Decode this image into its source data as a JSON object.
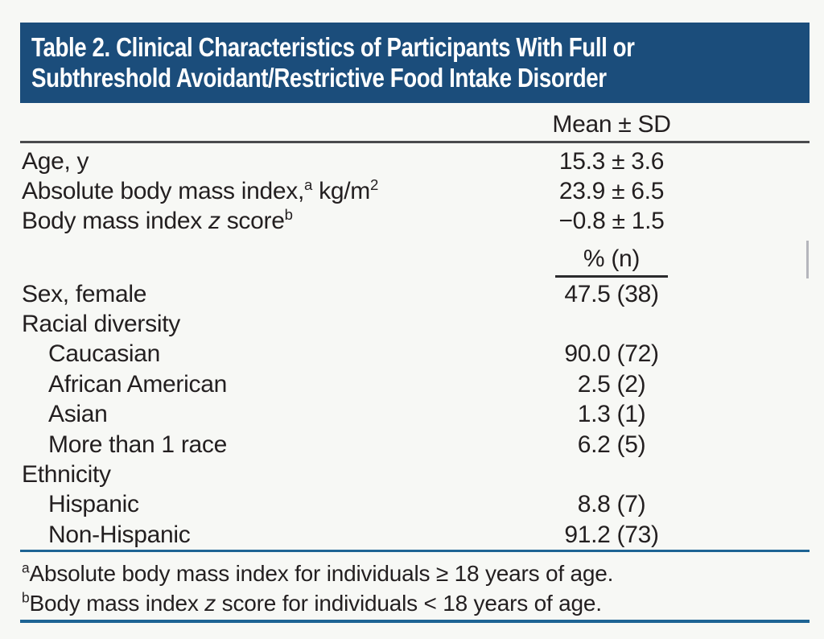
{
  "header": {
    "title_lines": [
      "Table 2. Clinical Characteristics of Participants With Full or",
      "Subthreshold Avoidant/Restrictive Food Intake Disorder"
    ]
  },
  "columns": {
    "mean_sd_label": "Mean ± SD",
    "pct_n_label": "% (n)"
  },
  "mean_sd_rows": [
    {
      "label": "Age, y",
      "value": "15.3 ± 3.6"
    },
    {
      "label_pre": "Absolute body mass index,",
      "sup1": "a",
      "label_mid": " kg/m",
      "sup2": "2",
      "value": "23.9 ± 6.5"
    },
    {
      "label_pre": "Body mass index ",
      "italic": "z",
      "label_post": " score",
      "sup1": "b",
      "value": "−0.8 ± 1.5"
    }
  ],
  "pct_rows": [
    {
      "label": "Sex, female",
      "value": "47.5 (38)"
    },
    {
      "label": "Racial diversity",
      "value": ""
    },
    {
      "label": "Caucasian",
      "value": "90.0 (72)"
    },
    {
      "label": "African American",
      "value": "2.5 (2)"
    },
    {
      "label": "Asian",
      "value": "1.3 (1)"
    },
    {
      "label": "More than 1 race",
      "value": "6.2 (5)"
    },
    {
      "label": "Ethnicity",
      "value": ""
    },
    {
      "label": "Hispanic",
      "value": "8.8 (7)"
    },
    {
      "label": "Non-Hispanic",
      "value": "91.2 (73)"
    }
  ],
  "footnotes": [
    {
      "sup": "a",
      "text": "Absolute body mass index for individuals ≥ 18 years of age."
    },
    {
      "sup": "b",
      "pre": "Body mass index ",
      "italic": "z",
      "post": " score for individuals < 18 years of age."
    }
  ],
  "colors": {
    "title_bar_background": "#1b4d7b",
    "title_text": "#ffffff",
    "blue_rule": "#1e6494",
    "dark_rule": "#4a4b4d",
    "body_text": "#231f20",
    "page_background": "#f7f8f5"
  }
}
